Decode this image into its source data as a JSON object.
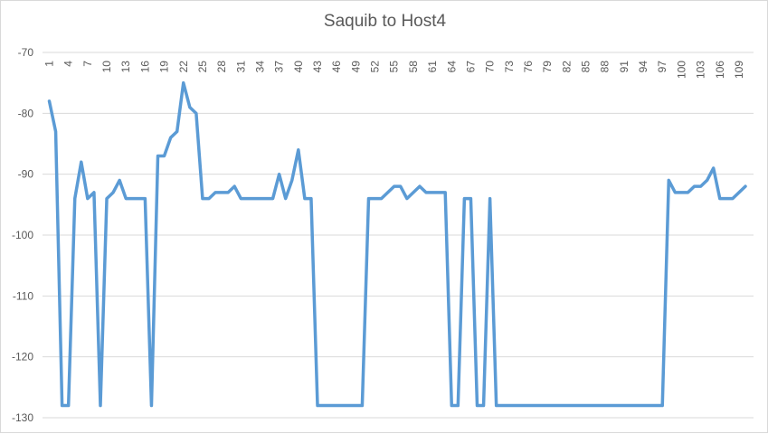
{
  "chart_data": {
    "type": "line",
    "title": "Saquib to Host4",
    "xlabel": "",
    "ylabel": "",
    "ylim": [
      -130,
      -70
    ],
    "yticks": [
      -70,
      -80,
      -90,
      -100,
      -110,
      -120,
      -130
    ],
    "x_tick_labels": [
      "1",
      "4",
      "7",
      "10",
      "13",
      "16",
      "19",
      "22",
      "25",
      "28",
      "31",
      "34",
      "37",
      "40",
      "43",
      "46",
      "49",
      "52",
      "55",
      "58",
      "61",
      "64",
      "67",
      "70",
      "73",
      "76",
      "79",
      "82",
      "85",
      "88",
      "91",
      "94",
      "97",
      "100",
      "103",
      "106",
      "109"
    ],
    "grid": true,
    "legend": "none",
    "line_color": "#5b9bd5",
    "x": [
      1,
      2,
      3,
      4,
      5,
      6,
      7,
      8,
      9,
      10,
      11,
      12,
      13,
      14,
      15,
      16,
      17,
      18,
      19,
      20,
      21,
      22,
      23,
      24,
      25,
      26,
      27,
      28,
      29,
      30,
      31,
      32,
      33,
      34,
      35,
      36,
      37,
      38,
      39,
      40,
      41,
      42,
      43,
      44,
      45,
      46,
      47,
      48,
      49,
      50,
      51,
      52,
      53,
      54,
      55,
      56,
      57,
      58,
      59,
      60,
      61,
      62,
      63,
      64,
      65,
      66,
      67,
      68,
      69,
      70,
      71,
      72,
      73,
      74,
      75,
      76,
      77,
      78,
      79,
      80,
      81,
      82,
      83,
      84,
      85,
      86,
      87,
      88,
      89,
      90,
      91,
      92,
      93,
      94,
      95,
      96,
      97,
      98,
      99,
      100,
      101,
      102,
      103,
      104,
      105,
      106,
      107,
      108,
      109,
      110
    ],
    "series": [
      {
        "values": [
          -78,
          -83,
          -128,
          -128,
          -94,
          -88,
          -94,
          -93,
          -128,
          -94,
          -93,
          -91,
          -94,
          -94,
          -94,
          -94,
          -128,
          -87,
          -87,
          -84,
          -83,
          -75,
          -79,
          -80,
          -94,
          -94,
          -93,
          -93,
          -93,
          -92,
          -94,
          -94,
          -94,
          -94,
          -94,
          -94,
          -90,
          -94,
          -91,
          -86,
          -94,
          -94,
          -128,
          -128,
          -128,
          -128,
          -128,
          -128,
          -128,
          -128,
          -94,
          -94,
          -94,
          -93,
          -92,
          -92,
          -94,
          -93,
          -92,
          -93,
          -93,
          -93,
          -93,
          -128,
          -128,
          -94,
          -94,
          -128,
          -128,
          -94,
          -128,
          -128,
          -128,
          -128,
          -128,
          -128,
          -128,
          -128,
          -128,
          -128,
          -128,
          -128,
          -128,
          -128,
          -128,
          -128,
          -128,
          -128,
          -128,
          -128,
          -128,
          -128,
          -128,
          -128,
          -128,
          -128,
          -128,
          -91,
          -93,
          -93,
          -93,
          -92,
          -92,
          -91,
          -89,
          -94,
          -94,
          -94,
          -93,
          -92
        ]
      }
    ]
  }
}
